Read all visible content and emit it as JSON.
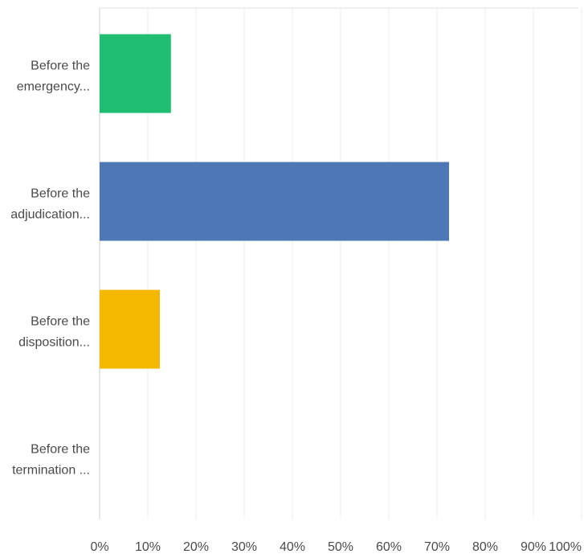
{
  "chart_data": {
    "type": "bar",
    "orientation": "horizontal",
    "categories": [
      [
        "Before the",
        "emergency..."
      ],
      [
        "Before the",
        "adjudication..."
      ],
      [
        "Before the",
        "disposition..."
      ],
      [
        "Before the",
        "termination ..."
      ]
    ],
    "values": [
      14.8,
      72.5,
      12.5,
      0
    ],
    "colors": [
      "#1fbe72",
      "#4e78b5",
      "#f5b800",
      "#d3d3d3"
    ],
    "xlim": [
      0,
      100
    ],
    "xticks": [
      0,
      10,
      20,
      30,
      40,
      50,
      60,
      70,
      80,
      90,
      100
    ],
    "xtick_labels": [
      "0%",
      "10%",
      "20%",
      "30%",
      "40%",
      "50%",
      "60%",
      "70%",
      "80%",
      "90%",
      "100%"
    ],
    "grid": true,
    "title": "",
    "xlabel": "",
    "ylabel": ""
  }
}
